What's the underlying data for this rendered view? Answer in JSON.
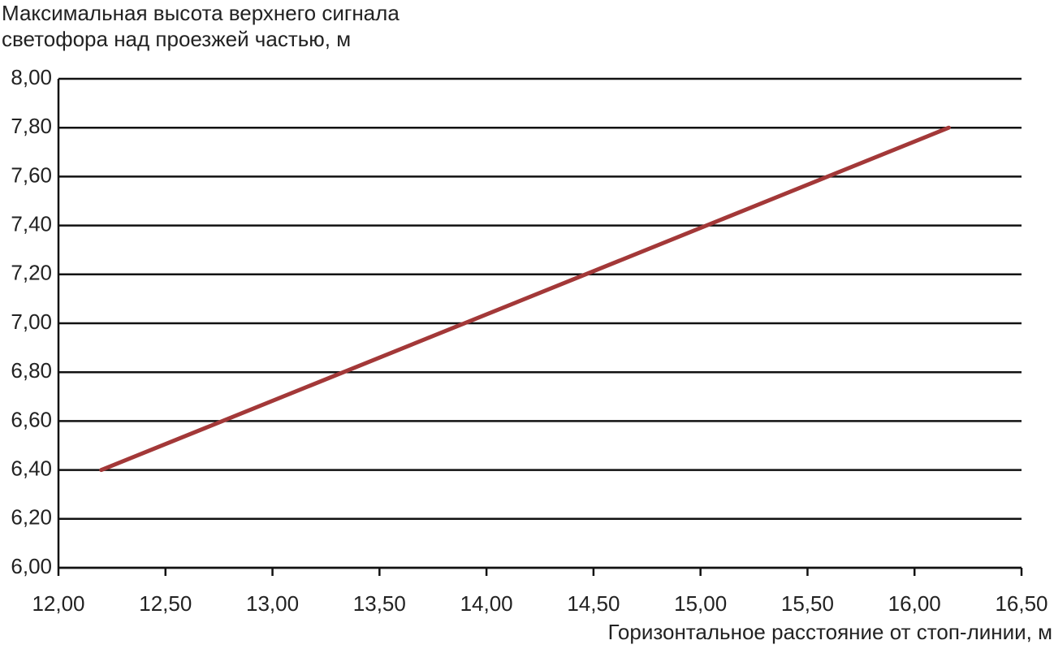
{
  "chart_data": {
    "type": "line",
    "y_label": [
      "Максимальная высота верхнего сигнала",
      "светофора над проезжей частью, м"
    ],
    "x_label": "Горизонтальное расстояние от стоп-линии, м",
    "x": [
      12.2,
      16.16
    ],
    "series": [
      {
        "color": "#a33838",
        "values": [
          6.4,
          7.8
        ]
      }
    ],
    "xlim": [
      12,
      16.5
    ],
    "xticks": [
      {
        "value": 12,
        "label": "12,00"
      },
      {
        "value": 12.5,
        "label": "12,50"
      },
      {
        "value": 13,
        "label": "13,00"
      },
      {
        "value": 13.5,
        "label": "13,50"
      },
      {
        "value": 14,
        "label": "14,00"
      },
      {
        "value": 14.5,
        "label": "14,50"
      },
      {
        "value": 15,
        "label": "15,00"
      },
      {
        "value": 15.5,
        "label": "15,50"
      },
      {
        "value": 16,
        "label": "16,00"
      },
      {
        "value": 16.5,
        "label": "16,50"
      }
    ],
    "ylim": [
      6,
      8
    ],
    "yticks": [
      {
        "value": 6,
        "label": "6,00"
      },
      {
        "value": 6.2,
        "label": "6,20"
      },
      {
        "value": 6.4,
        "label": "6,40"
      },
      {
        "value": 6.6,
        "label": "6,60"
      },
      {
        "value": 6.8,
        "label": "6,80"
      },
      {
        "value": 7,
        "label": "7,00"
      },
      {
        "value": 7.2,
        "label": "7,20"
      },
      {
        "value": 7.4,
        "label": "7,40"
      },
      {
        "value": 7.6,
        "label": "7,60"
      },
      {
        "value": 7.8,
        "label": "7,80"
      },
      {
        "value": 8,
        "label": "8,00"
      }
    ],
    "grid": true
  }
}
